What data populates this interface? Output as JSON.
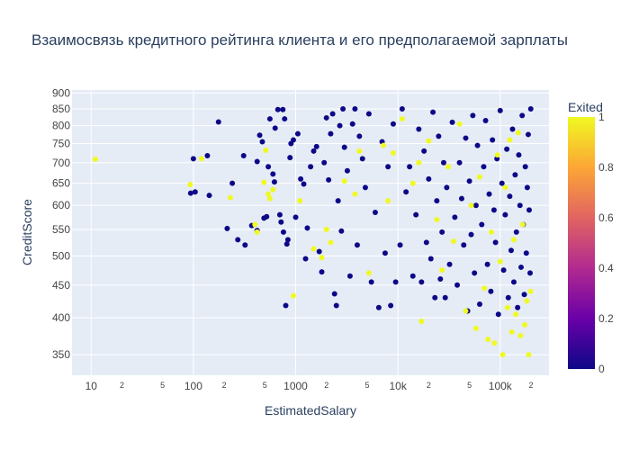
{
  "chart_data": {
    "type": "scatter",
    "title": "Взаимосвязь кредитного рейтинга клиента и его предполагаемой зарплаты",
    "xlabel": "EstimatedSalary",
    "ylabel": "CreditScore",
    "x_scale": "log",
    "y_scale": "log",
    "xlim": [
      6.5,
      300000
    ],
    "ylim": [
      325,
      910
    ],
    "x_ticks": [
      {
        "value": 10,
        "label": "10"
      },
      {
        "value": 20,
        "label": "2"
      },
      {
        "value": 50,
        "label": "5"
      },
      {
        "value": 100,
        "label": "100"
      },
      {
        "value": 200,
        "label": "2"
      },
      {
        "value": 500,
        "label": "5"
      },
      {
        "value": 1000,
        "label": "1000"
      },
      {
        "value": 2000,
        "label": "2"
      },
      {
        "value": 5000,
        "label": "5"
      },
      {
        "value": 10000,
        "label": "10k"
      },
      {
        "value": 20000,
        "label": "2"
      },
      {
        "value": 50000,
        "label": "5"
      },
      {
        "value": 100000,
        "label": "100k"
      },
      {
        "value": 200000,
        "label": "2"
      }
    ],
    "y_ticks": [
      350,
      400,
      450,
      500,
      550,
      600,
      650,
      700,
      750,
      800,
      850,
      900
    ],
    "colorbar": {
      "title": "Exited",
      "min": 0,
      "max": 1,
      "ticks": [
        "0",
        "0.2",
        "0.4",
        "0.6",
        "0.8",
        "1"
      ],
      "colors": {
        "0": "#0d0887",
        "0.2": "#6a00a8",
        "0.4": "#b12a90",
        "0.6": "#e16462",
        "0.8": "#fca636",
        "1": "#f0f921"
      }
    },
    "grid": true,
    "point_colors": {
      "stayed": "#0d0887",
      "exited": "#f0f921"
    },
    "series": [
      {
        "exited_value": 0,
        "points": [
          [
            94,
            627
          ],
          [
            100,
            710
          ],
          [
            104,
            630
          ],
          [
            137,
            718
          ],
          [
            143,
            622
          ],
          [
            176,
            811
          ],
          [
            214,
            552
          ],
          [
            240,
            650
          ],
          [
            272,
            530
          ],
          [
            310,
            718
          ],
          [
            320,
            520
          ],
          [
            372,
            558
          ],
          [
            420,
            548
          ],
          [
            420,
            703
          ],
          [
            445,
            773
          ],
          [
            472,
            755
          ],
          [
            490,
            573
          ],
          [
            520,
            576
          ],
          [
            540,
            690
          ],
          [
            560,
            820
          ],
          [
            600,
            672
          ],
          [
            620,
            653
          ],
          [
            630,
            793
          ],
          [
            670,
            848
          ],
          [
            700,
            580
          ],
          [
            720,
            565
          ],
          [
            750,
            848
          ],
          [
            760,
            545
          ],
          [
            780,
            820
          ],
          [
            800,
            418
          ],
          [
            820,
            522
          ],
          [
            840,
            530
          ],
          [
            880,
            713
          ],
          [
            900,
            750
          ],
          [
            950,
            760
          ],
          [
            1000,
            575
          ],
          [
            1050,
            777
          ],
          [
            1120,
            660
          ],
          [
            1200,
            648
          ],
          [
            1250,
            495
          ],
          [
            1300,
            553
          ],
          [
            1400,
            690
          ],
          [
            1500,
            730
          ],
          [
            1600,
            742
          ],
          [
            1700,
            508
          ],
          [
            1800,
            472
          ],
          [
            1900,
            700
          ],
          [
            2000,
            823
          ],
          [
            2100,
            658
          ],
          [
            2200,
            777
          ],
          [
            2300,
            835
          ],
          [
            2400,
            436
          ],
          [
            2500,
            418
          ],
          [
            2600,
            610
          ],
          [
            2700,
            800
          ],
          [
            2800,
            547
          ],
          [
            2900,
            850
          ],
          [
            3000,
            740
          ],
          [
            3200,
            680
          ],
          [
            3400,
            465
          ],
          [
            3600,
            805
          ],
          [
            3800,
            850
          ],
          [
            4000,
            520
          ],
          [
            4200,
            770
          ],
          [
            4500,
            710
          ],
          [
            4800,
            640
          ],
          [
            5200,
            835
          ],
          [
            5500,
            455
          ],
          [
            6000,
            585
          ],
          [
            6500,
            415
          ],
          [
            7000,
            755
          ],
          [
            7500,
            505
          ],
          [
            8000,
            690
          ],
          [
            8500,
            418
          ],
          [
            9000,
            805
          ],
          [
            9500,
            455
          ],
          [
            10500,
            520
          ],
          [
            11000,
            850
          ],
          [
            12000,
            630
          ],
          [
            13000,
            690
          ],
          [
            14000,
            465
          ],
          [
            15000,
            580
          ],
          [
            16000,
            790
          ],
          [
            17000,
            455
          ],
          [
            18000,
            730
          ],
          [
            19000,
            525
          ],
          [
            20000,
            660
          ],
          [
            21000,
            495
          ],
          [
            22000,
            840
          ],
          [
            23000,
            430
          ],
          [
            24000,
            610
          ],
          [
            25000,
            770
          ],
          [
            26000,
            460
          ],
          [
            27000,
            545
          ],
          [
            28000,
            700
          ],
          [
            29000,
            430
          ],
          [
            30000,
            640
          ],
          [
            32000,
            485
          ],
          [
            34000,
            810
          ],
          [
            36000,
            575
          ],
          [
            38000,
            450
          ],
          [
            40000,
            700
          ],
          [
            42000,
            615
          ],
          [
            44000,
            520
          ],
          [
            46000,
            765
          ],
          [
            48000,
            410
          ],
          [
            50000,
            655
          ],
          [
            52000,
            540
          ],
          [
            54000,
            830
          ],
          [
            56000,
            470
          ],
          [
            58000,
            600
          ],
          [
            60000,
            745
          ],
          [
            63000,
            420
          ],
          [
            66000,
            560
          ],
          [
            69000,
            690
          ],
          [
            72000,
            815
          ],
          [
            75000,
            485
          ],
          [
            78000,
            625
          ],
          [
            81000,
            440
          ],
          [
            84000,
            760
          ],
          [
            87000,
            590
          ],
          [
            90000,
            525
          ],
          [
            93000,
            710
          ],
          [
            96000,
            405
          ],
          [
            100000,
            845
          ],
          [
            104000,
            650
          ],
          [
            108000,
            475
          ],
          [
            112000,
            580
          ],
          [
            116000,
            735
          ],
          [
            120000,
            430
          ],
          [
            124000,
            620
          ],
          [
            128000,
            510
          ],
          [
            132000,
            790
          ],
          [
            136000,
            455
          ],
          [
            140000,
            670
          ],
          [
            144000,
            545
          ],
          [
            148000,
            415
          ],
          [
            152000,
            720
          ],
          [
            156000,
            600
          ],
          [
            160000,
            480
          ],
          [
            164000,
            830
          ],
          [
            168000,
            560
          ],
          [
            172000,
            435
          ],
          [
            176000,
            690
          ],
          [
            180000,
            505
          ],
          [
            184000,
            640
          ],
          [
            188000,
            775
          ],
          [
            192000,
            590
          ],
          [
            196000,
            470
          ],
          [
            199000,
            850
          ]
        ]
      },
      {
        "exited_value": 1,
        "points": [
          [
            11,
            709
          ],
          [
            93,
            647
          ],
          [
            120,
            710
          ],
          [
            230,
            617
          ],
          [
            400,
            560
          ],
          [
            420,
            545
          ],
          [
            490,
            652
          ],
          [
            510,
            732
          ],
          [
            540,
            625
          ],
          [
            560,
            615
          ],
          [
            600,
            635
          ],
          [
            950,
            433
          ],
          [
            1100,
            610
          ],
          [
            1500,
            513
          ],
          [
            1800,
            497
          ],
          [
            2000,
            550
          ],
          [
            2200,
            525
          ],
          [
            3000,
            655
          ],
          [
            3800,
            625
          ],
          [
            4200,
            730
          ],
          [
            5200,
            470
          ],
          [
            7200,
            745
          ],
          [
            8000,
            610
          ],
          [
            9000,
            725
          ],
          [
            11000,
            820
          ],
          [
            14000,
            650
          ],
          [
            16000,
            700
          ],
          [
            17000,
            395
          ],
          [
            20000,
            757
          ],
          [
            24000,
            570
          ],
          [
            27000,
            475
          ],
          [
            31000,
            690
          ],
          [
            35000,
            527
          ],
          [
            40000,
            805
          ],
          [
            46000,
            410
          ],
          [
            52000,
            600
          ],
          [
            58000,
            385
          ],
          [
            63000,
            665
          ],
          [
            70000,
            445
          ],
          [
            76000,
            370
          ],
          [
            82000,
            545
          ],
          [
            88000,
            365
          ],
          [
            94000,
            720
          ],
          [
            100000,
            490
          ],
          [
            106000,
            350
          ],
          [
            112000,
            640
          ],
          [
            118000,
            415
          ],
          [
            124000,
            760
          ],
          [
            130000,
            380
          ],
          [
            136000,
            530
          ],
          [
            142000,
            405
          ],
          [
            150000,
            780
          ],
          [
            158000,
            375
          ],
          [
            166000,
            560
          ],
          [
            174000,
            390
          ],
          [
            182000,
            425
          ],
          [
            190000,
            350
          ],
          [
            198000,
            440
          ]
        ]
      }
    ]
  }
}
